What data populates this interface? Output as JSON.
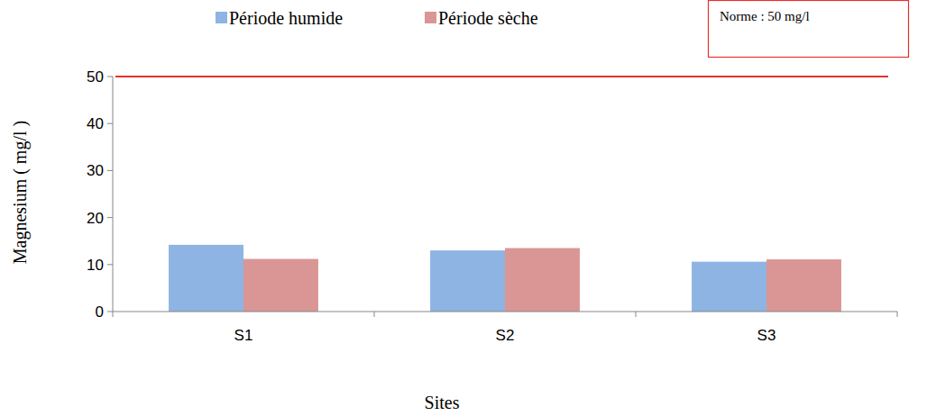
{
  "chart_data": {
    "type": "bar",
    "x_label": "Sites",
    "y_label": "Magnesium ( mg/l )",
    "categories": [
      "S1",
      "S2",
      "S3"
    ],
    "series": [
      {
        "name": "Période humide",
        "color": "#8eb4e3",
        "values": [
          14.2,
          13.0,
          10.6
        ]
      },
      {
        "name": "Période sèche",
        "color": "#d99694",
        "values": [
          11.2,
          13.5,
          11.1
        ]
      }
    ],
    "ylim": [
      0,
      50
    ],
    "yticks": [
      0,
      10,
      20,
      30,
      40,
      50
    ],
    "grid": false,
    "legend": "top",
    "reference_line": {
      "value": 50,
      "label": "Norme : 50 mg/l",
      "color": "#e8302c"
    }
  }
}
